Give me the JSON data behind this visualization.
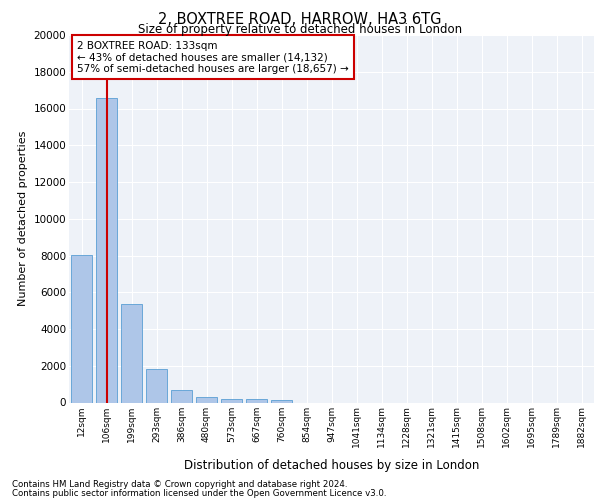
{
  "title": "2, BOXTREE ROAD, HARROW, HA3 6TG",
  "subtitle": "Size of property relative to detached houses in London",
  "xlabel": "Distribution of detached houses by size in London",
  "ylabel": "Number of detached properties",
  "categories": [
    "12sqm",
    "106sqm",
    "199sqm",
    "293sqm",
    "386sqm",
    "480sqm",
    "573sqm",
    "667sqm",
    "760sqm",
    "854sqm",
    "947sqm",
    "1041sqm",
    "1134sqm",
    "1228sqm",
    "1321sqm",
    "1415sqm",
    "1508sqm",
    "1602sqm",
    "1695sqm",
    "1789sqm",
    "1882sqm"
  ],
  "values": [
    8050,
    16550,
    5350,
    1850,
    700,
    320,
    200,
    170,
    130,
    0,
    0,
    0,
    0,
    0,
    0,
    0,
    0,
    0,
    0,
    0,
    0
  ],
  "bar_color": "#aec6e8",
  "bar_edge_color": "#5a9fd4",
  "vline_x": 1,
  "vline_color": "#cc0000",
  "annotation_title": "2 BOXTREE ROAD: 133sqm",
  "annotation_line1": "← 43% of detached houses are smaller (14,132)",
  "annotation_line2": "57% of semi-detached houses are larger (18,657) →",
  "annotation_box_color": "#ffffff",
  "annotation_box_edge": "#cc0000",
  "ylim": [
    0,
    20000
  ],
  "yticks": [
    0,
    2000,
    4000,
    6000,
    8000,
    10000,
    12000,
    14000,
    16000,
    18000,
    20000
  ],
  "bg_color": "#eef2f8",
  "footer1": "Contains HM Land Registry data © Crown copyright and database right 2024.",
  "footer2": "Contains public sector information licensed under the Open Government Licence v3.0."
}
